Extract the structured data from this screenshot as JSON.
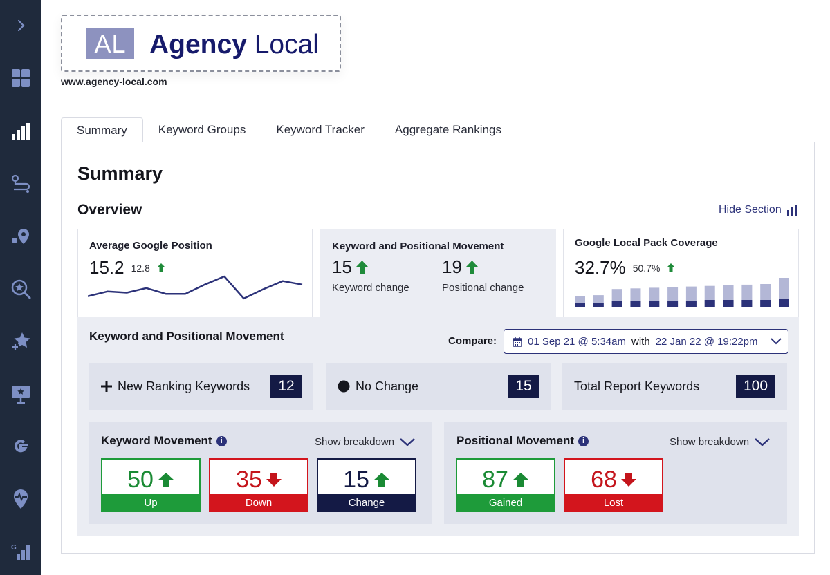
{
  "sidebar": {
    "icons": [
      "chevron-right-icon",
      "dashboard-grid-icon",
      "bar-chart-icon",
      "route-icon",
      "map-pin-icon",
      "search-star-icon",
      "star-plus-icon",
      "presentation-icon",
      "google-icon",
      "heartbeat-pin-icon",
      "google-ranking-icon"
    ]
  },
  "logo": {
    "mark": "AL",
    "name_bold": "Agency",
    "name_light": "Local",
    "url": "www.agency-local.com"
  },
  "tabs": [
    {
      "label": "Summary"
    },
    {
      "label": "Keyword Groups"
    },
    {
      "label": "Keyword Tracker"
    },
    {
      "label": "Aggregate Rankings"
    }
  ],
  "page_title": "Summary",
  "overview": {
    "title": "Overview",
    "hide_section": "Hide Section",
    "avg_position": {
      "title": "Average Google Position",
      "value": "15.2",
      "delta": "12.8",
      "sparkline": [
        8,
        12,
        11,
        15,
        10,
        10,
        18,
        25,
        6,
        14,
        21,
        18
      ]
    },
    "kp_movement": {
      "title": "Keyword and Positional Movement",
      "keyword_value": "15",
      "keyword_label": "Keyword change",
      "positional_value": "19",
      "positional_label": "Positional change"
    },
    "local_pack": {
      "title": "Google Local Pack Coverage",
      "value": "32.7%",
      "delta": "50.7%",
      "bars": [
        0.25,
        0.25,
        0.35,
        0.35,
        0.35,
        0.35,
        0.35,
        0.4,
        0.4,
        0.4,
        0.4,
        0.45
      ]
    }
  },
  "movement": {
    "title": "Keyword and Positional Movement",
    "compare_label": "Compare:",
    "compare_from": "01 Sep 21 @ 5:34am",
    "compare_with": "with",
    "compare_to": "22 Jan 22 @ 19:22pm",
    "stats": [
      {
        "label": "New Ranking Keywords",
        "value": "12"
      },
      {
        "label": "No Change",
        "value": "15"
      },
      {
        "label": "Total Report Keywords",
        "value": "100"
      }
    ],
    "keyword_movement": {
      "title": "Keyword Movement",
      "breakdown": "Show breakdown",
      "up": {
        "value": "50",
        "label": "Up"
      },
      "down": {
        "value": "35",
        "label": "Down"
      },
      "change": {
        "value": "15",
        "label": "Change"
      }
    },
    "positional_movement": {
      "title": "Positional Movement",
      "breakdown": "Show breakdown",
      "gained": {
        "value": "87",
        "label": "Gained"
      },
      "lost": {
        "value": "68",
        "label": "Lost"
      }
    }
  },
  "colors": {
    "sidebar": "#1f2a3c",
    "navy": "#141a45",
    "green": "#1e9b3a",
    "red": "#d3151d",
    "accent": "#2c3279",
    "grey_panel": "#ebedf3"
  }
}
